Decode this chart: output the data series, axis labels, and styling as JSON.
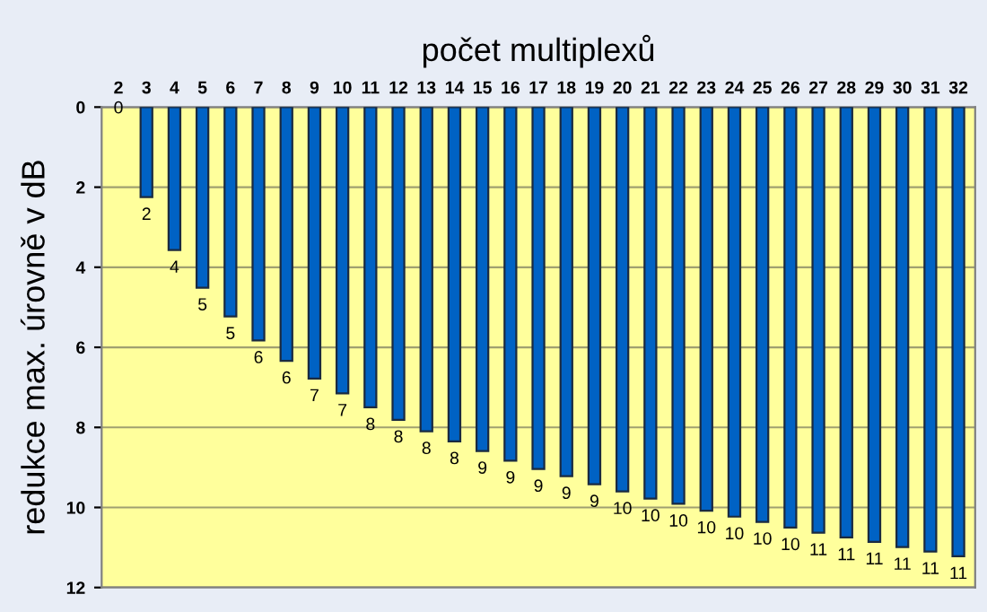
{
  "chart_data": {
    "type": "bar",
    "xlabel": "počet multiplexů",
    "ylabel": "redukce max. úrovně v dB",
    "categories": [
      "2",
      "3",
      "4",
      "5",
      "6",
      "7",
      "8",
      "9",
      "10",
      "11",
      "12",
      "13",
      "14",
      "15",
      "16",
      "17",
      "18",
      "19",
      "20",
      "21",
      "22",
      "23",
      "24",
      "25",
      "26",
      "27",
      "28",
      "29",
      "30",
      "31",
      "32"
    ],
    "values": [
      0,
      2.25,
      3.57,
      4.51,
      5.23,
      5.83,
      6.34,
      6.78,
      7.15,
      7.5,
      7.81,
      8.1,
      8.35,
      8.59,
      8.83,
      9.04,
      9.22,
      9.42,
      9.6,
      9.78,
      9.91,
      10.08,
      10.23,
      10.36,
      10.5,
      10.63,
      10.75,
      10.86,
      10.99,
      11.1,
      11.22
    ],
    "value_labels": [
      "0",
      "2",
      "4",
      "5",
      "5",
      "6",
      "6",
      "7",
      "7",
      "8",
      "8",
      "8",
      "8",
      "9",
      "9",
      "9",
      "9",
      "9",
      "10",
      "10",
      "10",
      "10",
      "10",
      "10",
      "10",
      "11",
      "11",
      "11",
      "11",
      "11",
      "11"
    ],
    "color": "#0062c4",
    "ylim": [
      12,
      0
    ],
    "yticks": [
      0,
      2,
      4,
      6,
      8,
      10,
      12
    ],
    "grid": "y"
  }
}
